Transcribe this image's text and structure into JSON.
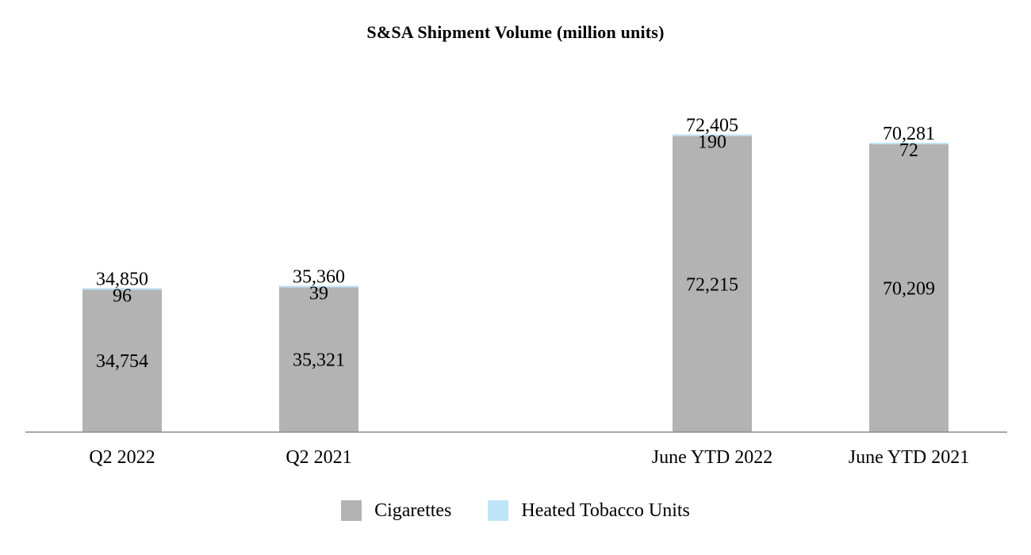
{
  "chart_data": {
    "type": "bar",
    "stacked": true,
    "title": "S&SA Shipment Volume (million units)",
    "xlabel": "",
    "ylabel": "",
    "categories": [
      "Q2 2022",
      "Q2 2021",
      "June YTD 2022",
      "June YTD 2021"
    ],
    "series": [
      {
        "name": "Cigarettes",
        "color": "#b3b3b3",
        "values": [
          34754,
          35321,
          72215,
          70209
        ],
        "labels": [
          "34,754",
          "35,321",
          "72,215",
          "70,209"
        ]
      },
      {
        "name": "Heated Tobacco Units",
        "color": "#bfe4f7",
        "values": [
          96,
          39,
          190,
          72
        ],
        "labels": [
          "96",
          "39",
          "190",
          "72"
        ]
      }
    ],
    "totals": [
      34850,
      35360,
      72405,
      70281
    ],
    "total_labels": [
      "34,850",
      "35,360",
      "72,405",
      "70,281"
    ],
    "ylim": [
      0,
      88000
    ],
    "grid": false,
    "legend": "bottom-center"
  }
}
